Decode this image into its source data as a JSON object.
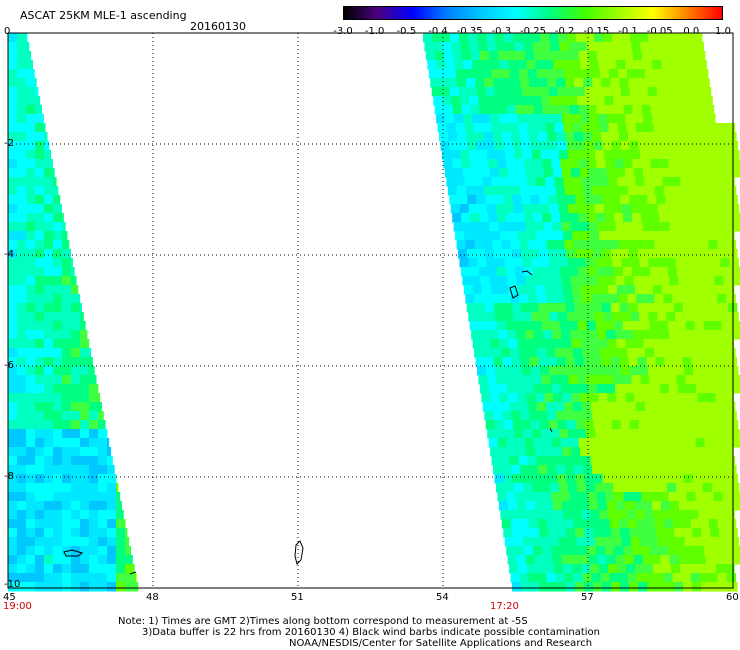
{
  "title": "ASCAT 25KM MLE-1 ascending",
  "date": "20160130",
  "colorbar": {
    "labels": [
      "-3.0",
      "-1.0",
      "-0.5",
      "-0.4",
      "-0.35",
      "-0.3",
      "-0.25",
      "-0.2",
      "-0.15",
      "-0.1",
      "-0.05",
      "0.0",
      "1.0"
    ],
    "colors": [
      "#000000",
      "#4b0082",
      "#0000ff",
      "#0080ff",
      "#00c8ff",
      "#00ffff",
      "#00ff80",
      "#40ff00",
      "#a0ff00",
      "#ffff00",
      "#ff8000",
      "#ff0000"
    ]
  },
  "axes": {
    "x_ticks": [
      "45",
      "48",
      "51",
      "54",
      "57",
      "60"
    ],
    "y_ticks": [
      "0",
      "-2",
      "-4",
      "-6",
      "-8",
      "-10"
    ],
    "lon_range": [
      45,
      60
    ],
    "lat_range": [
      -10,
      0
    ]
  },
  "times": {
    "left_pass": "19:00",
    "right_pass": "17:20"
  },
  "notes": {
    "line1": "Note: 1) Times are GMT 2)Times along bottom correspond to measurement at -5S",
    "line2": "3)Data buffer is 22 hrs from 20160130 4) Black wind barbs indicate possible contamination",
    "line3": "NOAA/NESDIS/Center for Satellite Applications and Research"
  }
}
